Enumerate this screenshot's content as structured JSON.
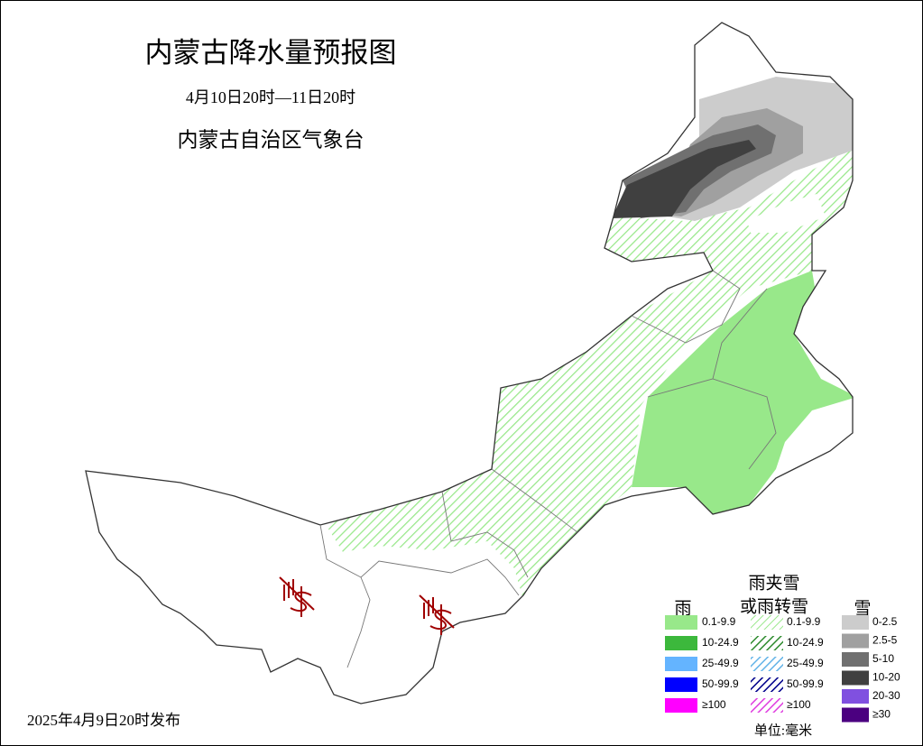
{
  "header": {
    "title": "内蒙古降水量预报图",
    "period": "4月10日20时—11日20时",
    "issuer": "内蒙古自治区气象台"
  },
  "legend": {
    "rain": {
      "title": "雨",
      "style": "solid",
      "items": [
        {
          "label": "0.1-9.9",
          "color": "#98e88a"
        },
        {
          "label": "10-24.9",
          "color": "#3cb83c"
        },
        {
          "label": "25-49.9",
          "color": "#64b4ff"
        },
        {
          "label": "50-99.9",
          "color": "#0000ff"
        },
        {
          "label": "≥100",
          "color": "#ff00ff"
        }
      ]
    },
    "mixed": {
      "title_lines": [
        "雨夹雪",
        "或雨转雪"
      ],
      "style": "hatched",
      "items": [
        {
          "label": "0.1-9.9",
          "color": "#98e88a"
        },
        {
          "label": "10-24.9",
          "color": "#2e8b2e"
        },
        {
          "label": "25-49.9",
          "color": "#64b4e8"
        },
        {
          "label": "50-99.9",
          "color": "#00008b"
        },
        {
          "label": "≥100",
          "color": "#e040e0"
        }
      ]
    },
    "snow": {
      "title": "雪",
      "style": "solid",
      "items": [
        {
          "label": "0-2.5",
          "color": "#cccccc"
        },
        {
          "label": "2.5-5",
          "color": "#a0a0a0"
        },
        {
          "label": "5-10",
          "color": "#707070"
        },
        {
          "label": "10-20",
          "color": "#404040"
        },
        {
          "label": "20-30",
          "color": "#8050e0"
        },
        {
          "label": "≥30",
          "color": "#4b0080"
        }
      ]
    },
    "unit": "单位:毫米"
  },
  "footer": {
    "issued": "2025年4月9日20时发布"
  }
}
